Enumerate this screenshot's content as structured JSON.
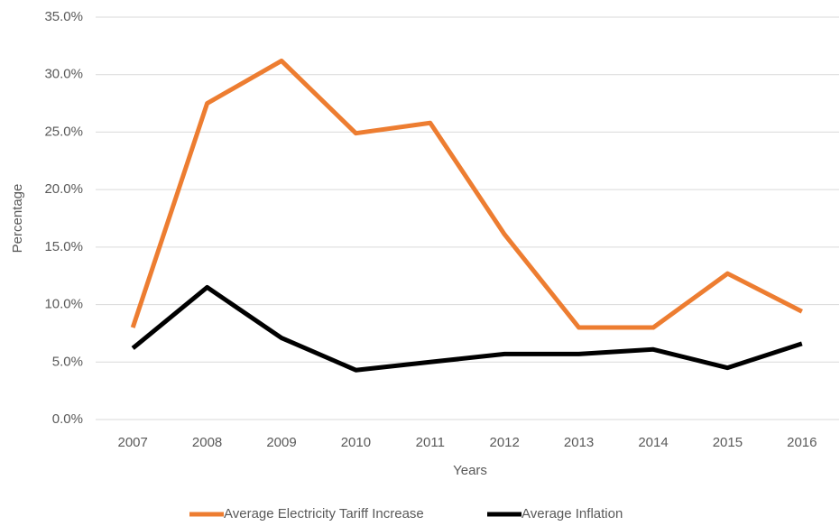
{
  "chart_data": {
    "type": "line",
    "x_label": "Years",
    "y_label": "Percentage",
    "categories": [
      "2007",
      "2008",
      "2009",
      "2010",
      "2011",
      "2012",
      "2013",
      "2014",
      "2015",
      "2016"
    ],
    "series": [
      {
        "name": "Average Electricity Tariff Increase",
        "color": "#ed7d31",
        "values": [
          8.0,
          27.5,
          31.2,
          24.9,
          25.8,
          16.1,
          8.0,
          8.0,
          12.7,
          9.4
        ]
      },
      {
        "name": "Average Inflation",
        "color": "#000000",
        "values": [
          6.2,
          11.5,
          7.1,
          4.3,
          5.0,
          5.7,
          5.7,
          6.1,
          4.5,
          6.6
        ]
      }
    ],
    "ylim": [
      0,
      35
    ],
    "yticks": [
      {
        "value": 0,
        "label": "0.0%"
      },
      {
        "value": 5,
        "label": "5.0%"
      },
      {
        "value": 10,
        "label": "10.0%"
      },
      {
        "value": 15,
        "label": "15.0%"
      },
      {
        "value": 20,
        "label": "20.0%"
      },
      {
        "value": 25,
        "label": "25.0%"
      },
      {
        "value": 30,
        "label": "30.0%"
      },
      {
        "value": 35,
        "label": "35.0%"
      }
    ],
    "grid": true,
    "legend": "bottom"
  }
}
